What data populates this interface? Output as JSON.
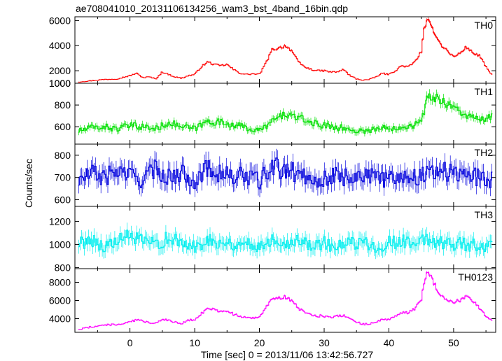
{
  "chart_data": {
    "type": "line",
    "title": "ae708041010_20131106134256_wam3_bst_4band_16bin.qdp",
    "xlabel": "Time [sec] 0 = 2013/11/06 13:42:56.727",
    "ylabel": "Counts/sec",
    "xlim": [
      -8.5,
      56.5
    ],
    "x_ticks": [
      0,
      10,
      20,
      30,
      40,
      50
    ],
    "grid": false,
    "panels": [
      {
        "name": "TH0",
        "color": "#ff0000",
        "ylim": [
          1000,
          6300
        ],
        "yticks": [
          1000,
          2000,
          4000,
          6000
        ],
        "x": [
          -8,
          -6,
          -4,
          -2,
          0,
          1,
          2,
          3,
          4,
          5,
          6,
          7,
          8,
          9,
          10,
          11,
          12,
          13,
          14,
          15,
          16,
          17,
          18,
          19,
          20,
          21,
          22,
          23,
          24,
          25,
          26,
          27,
          28,
          29,
          30,
          31,
          32,
          33,
          34,
          35,
          36,
          37,
          38,
          39,
          40,
          41,
          42,
          43,
          44,
          45,
          45.5,
          46,
          46.5,
          47,
          48,
          49,
          50,
          51,
          52,
          53,
          54,
          55,
          56
        ],
        "values": [
          1100,
          1200,
          1300,
          1350,
          1600,
          1800,
          1450,
          1500,
          1350,
          1900,
          1700,
          1500,
          1400,
          1600,
          1700,
          2300,
          2700,
          2500,
          2400,
          2500,
          2100,
          1800,
          1700,
          1750,
          1700,
          2600,
          3700,
          3800,
          4000,
          3600,
          2700,
          2300,
          2100,
          2000,
          2000,
          1900,
          1900,
          2100,
          1600,
          1350,
          1250,
          1300,
          1500,
          1800,
          1700,
          2000,
          2400,
          2300,
          2700,
          3500,
          5500,
          6000,
          5600,
          5100,
          4100,
          3600,
          3100,
          3400,
          3900,
          3400,
          3200,
          2300,
          1600
        ]
      },
      {
        "name": "TH1",
        "color": "#00e000",
        "ylim": [
          440,
          1000
        ],
        "yticks": [
          600,
          800,
          1000
        ],
        "x": [
          -8,
          -6,
          -4,
          -2,
          0,
          2,
          4,
          6,
          8,
          10,
          12,
          14,
          16,
          18,
          20,
          22,
          24,
          26,
          28,
          30,
          32,
          34,
          36,
          38,
          40,
          42,
          44,
          45,
          46,
          48,
          50,
          52,
          54,
          56
        ],
        "values": [
          560,
          590,
          600,
          580,
          610,
          600,
          580,
          640,
          600,
          580,
          650,
          640,
          620,
          590,
          560,
          650,
          720,
          680,
          640,
          610,
          600,
          570,
          560,
          580,
          590,
          600,
          620,
          640,
          880,
          850,
          780,
          700,
          660,
          690
        ]
      },
      {
        "name": "TH2",
        "color": "#0000dd",
        "ylim": [
          570,
          850
        ],
        "yticks": [
          600,
          700,
          800
        ],
        "x": [
          -8,
          -6,
          -4,
          -2,
          0,
          2,
          4,
          6,
          8,
          10,
          12,
          14,
          16,
          18,
          20,
          22,
          24,
          26,
          28,
          30,
          32,
          34,
          36,
          38,
          40,
          42,
          44,
          46,
          48,
          50,
          52,
          54,
          56
        ],
        "values": [
          680,
          720,
          700,
          730,
          710,
          690,
          740,
          700,
          720,
          690,
          740,
          720,
          700,
          710,
          680,
          750,
          730,
          720,
          700,
          690,
          710,
          700,
          720,
          690,
          700,
          710,
          700,
          720,
          740,
          710,
          720,
          700,
          690
        ]
      },
      {
        "name": "TH3",
        "color": "#00eeee",
        "ylim": [
          790,
          1330
        ],
        "yticks": [
          800,
          1000,
          1200
        ],
        "x": [
          -8,
          -6,
          -4,
          -2,
          0,
          2,
          4,
          6,
          8,
          10,
          12,
          14,
          16,
          18,
          20,
          22,
          24,
          26,
          28,
          30,
          32,
          34,
          36,
          38,
          40,
          42,
          44,
          46,
          48,
          50,
          52,
          54,
          56
        ],
        "values": [
          1000,
          1050,
          980,
          1020,
          1080,
          1020,
          1000,
          1060,
          1000,
          980,
          1040,
          1020,
          1000,
          1010,
          980,
          1050,
          1020,
          1030,
          1000,
          1010,
          980,
          1000,
          1020,
          990,
          1010,
          1030,
          1000,
          1050,
          1020,
          1010,
          1000,
          990,
          980
        ]
      },
      {
        "name": "TH0123",
        "color": "#ff00ff",
        "ylim": [
          2500,
          9500
        ],
        "yticks": [
          4000,
          6000,
          8000
        ],
        "x": [
          -8,
          -6,
          -4,
          -2,
          0,
          1,
          2,
          3,
          4,
          5,
          6,
          7,
          8,
          9,
          10,
          11,
          12,
          13,
          14,
          15,
          16,
          17,
          18,
          19,
          20,
          21,
          22,
          23,
          24,
          25,
          26,
          27,
          28,
          29,
          30,
          31,
          32,
          33,
          34,
          35,
          36,
          37,
          38,
          39,
          40,
          41,
          42,
          43,
          44,
          45,
          45.5,
          46,
          46.5,
          47,
          48,
          49,
          50,
          51,
          52,
          53,
          54,
          55,
          56
        ],
        "values": [
          2800,
          3100,
          3300,
          3350,
          3600,
          3900,
          3700,
          3600,
          3500,
          4000,
          3800,
          3600,
          3500,
          3800,
          3900,
          4500,
          5200,
          5000,
          4800,
          4900,
          4500,
          4200,
          4100,
          4100,
          4200,
          5300,
          6100,
          6200,
          6400,
          6000,
          5200,
          4600,
          4400,
          4300,
          4300,
          4200,
          4300,
          4400,
          4000,
          3600,
          3400,
          3400,
          3600,
          4000,
          3900,
          4200,
          4700,
          4600,
          5100,
          6000,
          8200,
          9200,
          8600,
          7800,
          6600,
          6000,
          5800,
          6000,
          6500,
          6000,
          5200,
          4300,
          3700
        ]
      }
    ]
  }
}
